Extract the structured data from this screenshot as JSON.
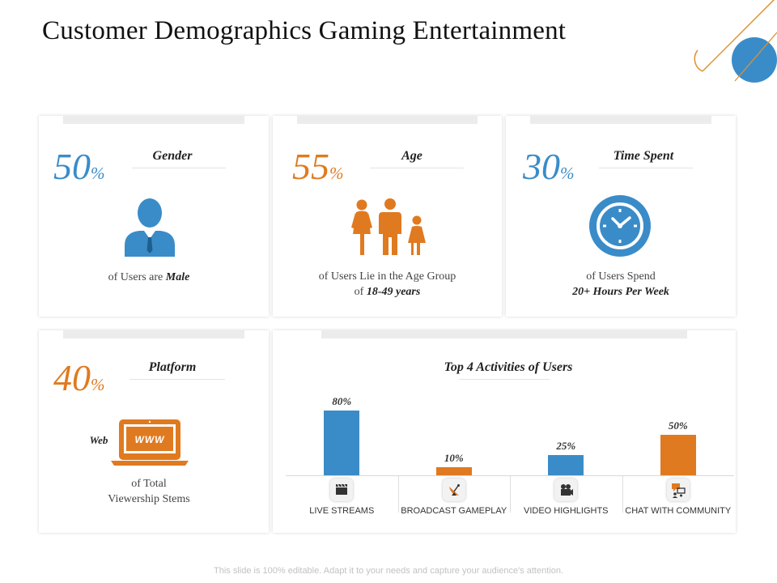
{
  "title": "Customer Demographics Gaming Entertainment",
  "colors": {
    "blue": "#3a8cc8",
    "orange": "#e07a20"
  },
  "cards": {
    "gender": {
      "value": "50",
      "unit": "%",
      "label": "Gender",
      "desc_pre": "of Users are ",
      "desc_em": "Male",
      "icon": "male-user-icon"
    },
    "age": {
      "value": "55",
      "unit": "%",
      "label": "Age",
      "desc_line1": "of Users Lie in the Age Group",
      "desc_pre": "of ",
      "desc_em": "18-49 years",
      "icon": "family-icon"
    },
    "time": {
      "value": "30",
      "unit": "%",
      "label": "Time Spent",
      "desc_line1": "of Users Spend",
      "desc_em": "20+ Hours Per Week",
      "icon": "clock-icon"
    },
    "platform": {
      "value": "40",
      "unit": "%",
      "label": "Platform",
      "web_label": "Web",
      "screen_text": "WWW",
      "desc_line1": "of Total",
      "desc_line2": "Viewership Stems",
      "icon": "laptop-www-icon"
    }
  },
  "activities": {
    "title": "Top 4 Activities of Users"
  },
  "chart_data": {
    "type": "bar",
    "title": "Top 4 Activities of Users",
    "categories": [
      "LIVE STREAMS",
      "BROADCAST GAMEPLAY",
      "VIDEO HIGHLIGHTS",
      "CHAT WITH COMMUNITY"
    ],
    "values": [
      80,
      10,
      25,
      50
    ],
    "value_labels": [
      "80%",
      "10%",
      "25%",
      "50%"
    ],
    "colors": [
      "#3a8cc8",
      "#e07a20",
      "#3a8cc8",
      "#e07a20"
    ],
    "icons": [
      "clapperboard-icon",
      "satellite-dish-icon",
      "camera-icon",
      "chat-icon"
    ],
    "ylim": [
      0,
      100
    ],
    "grid": false
  },
  "footer": "This slide is 100% editable. Adapt it to your needs and capture your audience's attention."
}
